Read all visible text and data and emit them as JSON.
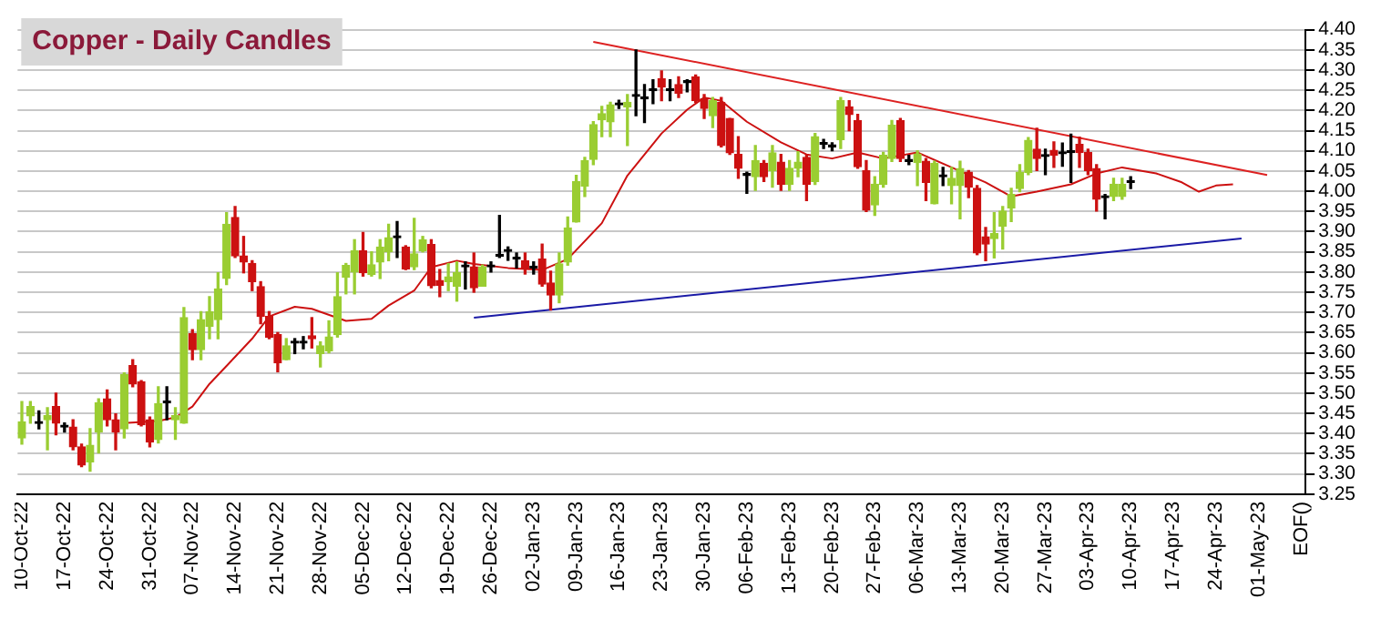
{
  "chart_data": {
    "type": "candlestick",
    "title": "Copper - Daily Candles",
    "categories": [
      "10-Oct-22",
      null,
      null,
      null,
      null,
      "17-Oct-22",
      null,
      null,
      null,
      null,
      "24-Oct-22",
      null,
      null,
      null,
      null,
      "31-Oct-22",
      null,
      null,
      null,
      null,
      "07-Nov-22",
      null,
      null,
      null,
      null,
      "14-Nov-22",
      null,
      null,
      null,
      null,
      "21-Nov-22",
      null,
      null,
      null,
      null,
      "28-Nov-22",
      null,
      null,
      null,
      null,
      "05-Dec-22",
      null,
      null,
      null,
      null,
      "12-Dec-22",
      null,
      null,
      null,
      null,
      "19-Dec-22",
      null,
      null,
      null,
      null,
      "26-Dec-22",
      null,
      null,
      null,
      null,
      "02-Jan-23",
      null,
      null,
      null,
      null,
      "09-Jan-23",
      null,
      null,
      null,
      null,
      "16-Jan-23",
      null,
      null,
      null,
      null,
      "23-Jan-23",
      null,
      null,
      null,
      null,
      "30-Jan-23",
      null,
      null,
      null,
      null,
      "06-Feb-23",
      null,
      null,
      null,
      null,
      "13-Feb-23",
      null,
      null,
      null,
      null,
      "20-Feb-23",
      null,
      null,
      null,
      null,
      "27-Feb-23",
      null,
      null,
      null,
      null,
      "06-Mar-23",
      null,
      null,
      null,
      null,
      "13-Mar-23",
      null,
      null,
      null,
      null,
      "20-Mar-23",
      null,
      null,
      null,
      null,
      "27-Mar-23",
      null,
      null,
      null,
      null,
      "03-Apr-23",
      null,
      null,
      null,
      null,
      "10-Apr-23",
      null,
      null,
      null,
      null,
      "17-Apr-23",
      null,
      null,
      null,
      null,
      "24-Apr-23",
      null,
      null,
      null,
      null,
      "01-May-23",
      null,
      null,
      null,
      null,
      "EOF()"
    ],
    "ohlc": [
      [
        3.389,
        3.479,
        3.374,
        3.429
      ],
      [
        3.444,
        3.479,
        3.426,
        3.467
      ],
      [
        3.425,
        3.456,
        3.412,
        3.425
      ],
      [
        3.434,
        3.464,
        3.36,
        3.444
      ],
      [
        3.467,
        3.5,
        3.397,
        3.426
      ],
      [
        3.416,
        3.426,
        3.404,
        3.416
      ],
      [
        3.416,
        3.434,
        3.36,
        3.367
      ],
      [
        3.367,
        3.374,
        3.318,
        3.322
      ],
      [
        3.33,
        3.412,
        3.307,
        3.371
      ],
      [
        3.404,
        3.486,
        3.352,
        3.476
      ],
      [
        3.486,
        3.508,
        3.419,
        3.434
      ],
      [
        3.434,
        3.449,
        3.36,
        3.404
      ],
      [
        3.412,
        3.55,
        3.389,
        3.546
      ],
      [
        3.568,
        3.583,
        3.516,
        3.523
      ],
      [
        3.528,
        3.531,
        3.419,
        3.422
      ],
      [
        3.434,
        3.441,
        3.367,
        3.379
      ],
      [
        3.385,
        3.516,
        3.377,
        3.474
      ],
      [
        3.476,
        3.516,
        3.434,
        3.476
      ],
      [
        3.434,
        3.464,
        3.386,
        3.444
      ],
      [
        3.426,
        3.712,
        3.426,
        3.687
      ],
      [
        3.647,
        3.657,
        3.583,
        3.608
      ],
      [
        3.608,
        3.702,
        3.583,
        3.682
      ],
      [
        3.665,
        3.739,
        3.635,
        3.702
      ],
      [
        3.682,
        3.798,
        3.635,
        3.758
      ],
      [
        3.784,
        3.947,
        3.769,
        3.918
      ],
      [
        3.935,
        3.962,
        3.836,
        3.84
      ],
      [
        3.84,
        3.888,
        3.798,
        3.825
      ],
      [
        3.821,
        3.828,
        3.754,
        3.776
      ],
      [
        3.764,
        3.776,
        3.672,
        3.69
      ],
      [
        3.69,
        3.702,
        3.635,
        3.638
      ],
      [
        3.645,
        3.65,
        3.553,
        3.575
      ],
      [
        3.583,
        3.635,
        3.583,
        3.617
      ],
      [
        3.624,
        3.635,
        3.598,
        3.624
      ],
      [
        3.624,
        3.64,
        3.61,
        3.624
      ],
      [
        3.642,
        3.687,
        3.612,
        3.635
      ],
      [
        3.598,
        3.627,
        3.565,
        3.617
      ],
      [
        3.605,
        3.679,
        3.6,
        3.639
      ],
      [
        3.645,
        3.798,
        3.639,
        3.739
      ],
      [
        3.787,
        3.821,
        3.746,
        3.816
      ],
      [
        3.8,
        3.88,
        3.746,
        3.853
      ],
      [
        3.853,
        3.898,
        3.79,
        3.798
      ],
      [
        3.794,
        3.85,
        3.79,
        3.818
      ],
      [
        3.825,
        3.88,
        3.784,
        3.862
      ],
      [
        3.85,
        3.918,
        3.828,
        3.885
      ],
      [
        3.885,
        3.925,
        3.836,
        3.885
      ],
      [
        3.862,
        3.865,
        3.806,
        3.808
      ],
      [
        3.813,
        3.933,
        3.806,
        3.845
      ],
      [
        3.853,
        3.888,
        3.85,
        3.88
      ],
      [
        3.868,
        3.88,
        3.761,
        3.766
      ],
      [
        3.779,
        3.806,
        3.739,
        3.767
      ],
      [
        3.776,
        3.821,
        3.754,
        3.788
      ],
      [
        3.765,
        3.825,
        3.728,
        3.798
      ],
      [
        3.813,
        3.825,
        3.758,
        3.813
      ],
      [
        3.813,
        3.847,
        3.75,
        3.761
      ],
      [
        3.765,
        3.817,
        3.765,
        3.813
      ],
      [
        3.813,
        3.825,
        3.8,
        3.813
      ],
      [
        3.839,
        3.94,
        3.836,
        3.839
      ],
      [
        3.851,
        3.862,
        3.829,
        3.851
      ],
      [
        3.832,
        3.847,
        3.81,
        3.832
      ],
      [
        3.828,
        3.847,
        3.795,
        3.81
      ],
      [
        3.81,
        3.825,
        3.795,
        3.81
      ],
      [
        3.832,
        3.869,
        3.765,
        3.77
      ],
      [
        3.773,
        3.802,
        3.706,
        3.743
      ],
      [
        3.743,
        3.847,
        3.724,
        3.82
      ],
      [
        3.825,
        3.936,
        3.817,
        3.909
      ],
      [
        3.924,
        4.039,
        3.924,
        4.024
      ],
      [
        4.013,
        4.084,
        3.987,
        4.076
      ],
      [
        4.079,
        4.172,
        4.066,
        4.165
      ],
      [
        4.177,
        4.21,
        4.135,
        4.192
      ],
      [
        4.172,
        4.22,
        4.135,
        4.214
      ],
      [
        4.214,
        4.225,
        4.205,
        4.214
      ],
      [
        4.209,
        4.239,
        4.113,
        4.22
      ],
      [
        4.235,
        4.35,
        4.187,
        4.235
      ],
      [
        4.229,
        4.264,
        4.17,
        4.229
      ],
      [
        4.249,
        4.276,
        4.217,
        4.249
      ],
      [
        4.279,
        4.298,
        4.224,
        4.258
      ],
      [
        4.249,
        4.276,
        4.224,
        4.249
      ],
      [
        4.264,
        4.283,
        4.232,
        4.243
      ],
      [
        4.269,
        4.276,
        4.246,
        4.269
      ],
      [
        4.283,
        4.288,
        4.22,
        4.224
      ],
      [
        4.229,
        4.239,
        4.18,
        4.205
      ],
      [
        4.187,
        4.232,
        4.158,
        4.224
      ],
      [
        4.22,
        4.232,
        4.11,
        4.113
      ],
      [
        4.18,
        4.18,
        4.091,
        4.095
      ],
      [
        4.091,
        4.135,
        4.032,
        4.057
      ],
      [
        4.039,
        4.047,
        3.995,
        4.039
      ],
      [
        4.036,
        4.113,
        4.002,
        4.076
      ],
      [
        4.069,
        4.076,
        4.024,
        4.036
      ],
      [
        4.051,
        4.113,
        4.01,
        4.095
      ],
      [
        4.072,
        4.091,
        4.002,
        4.017
      ],
      [
        4.017,
        4.076,
        4.002,
        4.057
      ],
      [
        4.057,
        4.098,
        4.036,
        4.072
      ],
      [
        4.084,
        4.091,
        3.977,
        4.017
      ],
      [
        4.024,
        4.143,
        4.017,
        4.135
      ],
      [
        4.116,
        4.128,
        4.106,
        4.116
      ],
      [
        4.11,
        4.12,
        4.1,
        4.11
      ],
      [
        4.128,
        4.232,
        4.106,
        4.224
      ],
      [
        4.209,
        4.224,
        4.15,
        4.19
      ],
      [
        4.175,
        4.19,
        4.057,
        4.061
      ],
      [
        4.051,
        4.076,
        3.95,
        3.953
      ],
      [
        3.966,
        4.036,
        3.94,
        4.017
      ],
      [
        4.017,
        4.096,
        4.01,
        4.089
      ],
      [
        4.081,
        4.175,
        4.074,
        4.163
      ],
      [
        4.175,
        4.18,
        4.074,
        4.081
      ],
      [
        4.074,
        4.089,
        4.066,
        4.074
      ],
      [
        4.071,
        4.1,
        4.014,
        4.092
      ],
      [
        4.074,
        4.081,
        3.977,
        4.022
      ],
      [
        3.969,
        4.074,
        3.969,
        4.069
      ],
      [
        4.036,
        4.059,
        4.014,
        4.036
      ],
      [
        4.014,
        4.059,
        3.969,
        4.032
      ],
      [
        4.014,
        4.074,
        3.932,
        4.056
      ],
      [
        4.047,
        4.051,
        3.984,
        4.01
      ],
      [
        4.007,
        4.014,
        3.843,
        3.847
      ],
      [
        3.887,
        3.91,
        3.828,
        3.869
      ],
      [
        3.883,
        3.947,
        3.835,
        3.895
      ],
      [
        3.914,
        3.962,
        3.857,
        3.951
      ],
      [
        3.959,
        4.007,
        3.925,
        3.992
      ],
      [
        4.007,
        4.066,
        3.999,
        4.047
      ],
      [
        4.047,
        4.133,
        4.041,
        4.126
      ],
      [
        4.104,
        4.156,
        4.051,
        4.081
      ],
      [
        4.086,
        4.104,
        4.041,
        4.086
      ],
      [
        4.101,
        4.122,
        4.059,
        4.089
      ],
      [
        4.093,
        4.119,
        4.062,
        4.093
      ],
      [
        4.096,
        4.141,
        4.022,
        4.096
      ],
      [
        4.116,
        4.134,
        4.059,
        4.096
      ],
      [
        4.096,
        4.104,
        4.041,
        4.051
      ],
      [
        4.056,
        4.066,
        3.951,
        3.98
      ],
      [
        3.984,
        3.992,
        3.932,
        3.984
      ],
      [
        3.987,
        4.032,
        3.977,
        4.017
      ],
      [
        3.987,
        4.032,
        3.98,
        4.017
      ],
      [
        4.022,
        4.036,
        4.007,
        4.022
      ],
      null,
      null,
      null,
      null,
      null,
      null,
      null,
      null,
      null,
      null,
      null,
      null,
      null,
      null,
      null,
      null,
      null,
      null,
      null,
      null
    ],
    "colors": [
      "#9acd32",
      "#9acd32",
      "#000000",
      "#9acd32",
      "#cc1111",
      "#000000",
      "#cc1111",
      "#cc1111",
      "#9acd32",
      "#9acd32",
      "#cc1111",
      "#cc1111",
      "#9acd32",
      "#cc1111",
      "#cc1111",
      "#cc1111",
      "#9acd32",
      "#000000",
      "#9acd32",
      "#9acd32",
      "#cc1111",
      "#9acd32",
      "#9acd32",
      "#9acd32",
      "#9acd32",
      "#cc1111",
      "#cc1111",
      "#cc1111",
      "#cc1111",
      "#cc1111",
      "#cc1111",
      "#9acd32",
      "#000000",
      "#000000",
      "#cc1111",
      "#9acd32",
      "#9acd32",
      "#9acd32",
      "#9acd32",
      "#9acd32",
      "#cc1111",
      "#9acd32",
      "#9acd32",
      "#9acd32",
      "#000000",
      "#cc1111",
      "#9acd32",
      "#9acd32",
      "#cc1111",
      "#cc1111",
      "#9acd32",
      "#9acd32",
      "#000000",
      "#cc1111",
      "#9acd32",
      "#000000",
      "#000000",
      "#000000",
      "#000000",
      "#cc1111",
      "#000000",
      "#cc1111",
      "#cc1111",
      "#9acd32",
      "#9acd32",
      "#9acd32",
      "#9acd32",
      "#9acd32",
      "#9acd32",
      "#9acd32",
      "#000000",
      "#9acd32",
      "#000000",
      "#000000",
      "#000000",
      "#cc1111",
      "#000000",
      "#cc1111",
      "#000000",
      "#cc1111",
      "#cc1111",
      "#9acd32",
      "#cc1111",
      "#cc1111",
      "#cc1111",
      "#000000",
      "#9acd32",
      "#cc1111",
      "#9acd32",
      "#cc1111",
      "#9acd32",
      "#9acd32",
      "#cc1111",
      "#9acd32",
      "#000000",
      "#000000",
      "#9acd32",
      "#cc1111",
      "#cc1111",
      "#cc1111",
      "#9acd32",
      "#9acd32",
      "#9acd32",
      "#cc1111",
      "#000000",
      "#9acd32",
      "#cc1111",
      "#9acd32",
      "#000000",
      "#9acd32",
      "#9acd32",
      "#cc1111",
      "#cc1111",
      "#cc1111",
      "#9acd32",
      "#9acd32",
      "#9acd32",
      "#9acd32",
      "#9acd32",
      "#cc1111",
      "#000000",
      "#cc1111",
      "#000000",
      "#000000",
      "#cc1111",
      "#cc1111",
      "#cc1111",
      "#000000",
      "#9acd32",
      "#9acd32",
      "#000000",
      null,
      null,
      null,
      null,
      null,
      null,
      null,
      null,
      null,
      null,
      null,
      null,
      null,
      null,
      null,
      null,
      null,
      null,
      null,
      null
    ],
    "series": [
      {
        "type": "line",
        "color": "#cc1111",
        "values": [
          null,
          null,
          null,
          null,
          null,
          null,
          null,
          null,
          null,
          null,
          null,
          null,
          3.426,
          null,
          null,
          null,
          3.431,
          null,
          3.44,
          null,
          3.467,
          null,
          3.523,
          null,
          null,
          3.59,
          null,
          3.635,
          null,
          3.69,
          null,
          null,
          3.714,
          null,
          3.709,
          null,
          null,
          null,
          3.679,
          null,
          null,
          3.684,
          null,
          3.717,
          null,
          null,
          3.754,
          null,
          3.812,
          null,
          null,
          3.828,
          null,
          3.82,
          null,
          null,
          null,
          3.81,
          null,
          null,
          null,
          3.805,
          null,
          null,
          3.832,
          null,
          null,
          null,
          3.921,
          null,
          null,
          4.039,
          null,
          null,
          null,
          4.143,
          null,
          null,
          4.202,
          null,
          4.232,
          null,
          4.224,
          null,
          null,
          4.172,
          null,
          null,
          null,
          4.121,
          null,
          null,
          4.091,
          null,
          null,
          4.081,
          null,
          null,
          4.096,
          null,
          null,
          4.081,
          null,
          null,
          null,
          4.096,
          null,
          null,
          null,
          4.059,
          null,
          null,
          null,
          4.022,
          null,
          null,
          3.987,
          null,
          null,
          3.999,
          null,
          null,
          null,
          4.017,
          null,
          null,
          4.044,
          null,
          null,
          4.059,
          null,
          null,
          null,
          4.044,
          null,
          null,
          4.022,
          null,
          3.999,
          null,
          4.014,
          null,
          4.017,
          null,
          null,
          null,
          null,
          null,
          null,
          null,
          null
        ]
      },
      {
        "type": "line",
        "color": "#dd2222",
        "values": [
          null,
          null,
          null,
          null,
          null,
          null,
          null,
          null,
          null,
          null,
          null,
          null,
          null,
          null,
          null,
          null,
          null,
          null,
          null,
          null,
          null,
          null,
          null,
          null,
          null,
          null,
          null,
          null,
          null,
          null,
          null,
          null,
          null,
          null,
          null,
          null,
          null,
          null,
          null,
          null,
          null,
          null,
          null,
          null,
          null,
          null,
          null,
          null,
          null,
          null,
          null,
          null,
          null,
          null,
          null,
          null,
          null,
          null,
          null,
          null,
          null,
          null,
          null,
          null,
          null,
          null,
          null,
          4.37,
          null,
          null,
          null,
          null,
          null,
          null,
          null,
          null,
          null,
          null,
          null,
          null,
          null,
          null,
          null,
          null,
          null,
          null,
          null,
          null,
          null,
          null,
          null,
          null,
          null,
          null,
          null,
          null,
          null,
          null,
          null,
          null,
          null,
          null,
          null,
          null,
          null,
          null,
          null,
          null,
          null,
          null,
          null,
          null,
          null,
          null,
          null,
          null,
          null,
          null,
          null,
          null,
          null,
          null,
          null,
          null,
          null,
          null,
          null,
          null,
          null,
          null,
          null,
          null,
          null,
          null,
          null,
          null,
          null,
          null,
          null,
          null,
          null,
          null,
          null,
          null,
          null,
          null,
          4.04,
          null,
          null,
          null,
          null
        ]
      },
      {
        "type": "line",
        "color": "#1a1aa6",
        "values": [
          null,
          null,
          null,
          null,
          null,
          null,
          null,
          null,
          null,
          null,
          null,
          null,
          null,
          null,
          null,
          null,
          null,
          null,
          null,
          null,
          null,
          null,
          null,
          null,
          null,
          null,
          null,
          null,
          null,
          null,
          null,
          null,
          null,
          null,
          null,
          null,
          null,
          null,
          null,
          null,
          null,
          null,
          null,
          null,
          null,
          null,
          null,
          null,
          null,
          null,
          null,
          null,
          null,
          3.687,
          null,
          null,
          null,
          null,
          null,
          null,
          null,
          null,
          null,
          null,
          null,
          null,
          null,
          null,
          null,
          null,
          null,
          null,
          null,
          null,
          null,
          null,
          null,
          null,
          null,
          null,
          null,
          null,
          null,
          null,
          null,
          null,
          null,
          null,
          null,
          null,
          null,
          null,
          null,
          null,
          null,
          null,
          null,
          null,
          null,
          null,
          null,
          null,
          null,
          null,
          null,
          null,
          null,
          null,
          null,
          null,
          null,
          null,
          null,
          null,
          null,
          null,
          null,
          null,
          null,
          null,
          null,
          null,
          null,
          null,
          null,
          null,
          null,
          null,
          null,
          null,
          null,
          null,
          null,
          null,
          null,
          null,
          null,
          null,
          null,
          null,
          null,
          null,
          null,
          3.883,
          null,
          null,
          null,
          null,
          null,
          null,
          null
        ]
      }
    ],
    "ylim": [
      3.25,
      4.4
    ],
    "yticks": [
      {
        "value": 3.25,
        "label": "3.25"
      },
      {
        "value": 3.3,
        "label": "3.30"
      },
      {
        "value": 3.35,
        "label": "3.35"
      },
      {
        "value": 3.4,
        "label": "3.40"
      },
      {
        "value": 3.45,
        "label": "3.45"
      },
      {
        "value": 3.5,
        "label": "3.50"
      },
      {
        "value": 3.55,
        "label": "3.55"
      },
      {
        "value": 3.6,
        "label": "3.60"
      },
      {
        "value": 3.65,
        "label": "3.65"
      },
      {
        "value": 3.7,
        "label": "3.70"
      },
      {
        "value": 3.75,
        "label": "3.75"
      },
      {
        "value": 3.8,
        "label": "3.80"
      },
      {
        "value": 3.85,
        "label": "3.85"
      },
      {
        "value": 3.9,
        "label": "3.90"
      },
      {
        "value": 3.95,
        "label": "3.95"
      },
      {
        "value": 4.0,
        "label": "4.00"
      },
      {
        "value": 4.05,
        "label": "4.05"
      },
      {
        "value": 4.1,
        "label": "4.10"
      },
      {
        "value": 4.15,
        "label": "4.15"
      },
      {
        "value": 4.2,
        "label": "4.20"
      },
      {
        "value": 4.25,
        "label": "4.25"
      },
      {
        "value": 4.3,
        "label": "4.30"
      },
      {
        "value": 4.35,
        "label": "4.35"
      },
      {
        "value": 4.4,
        "label": "4.40"
      }
    ],
    "grid": "y"
  }
}
